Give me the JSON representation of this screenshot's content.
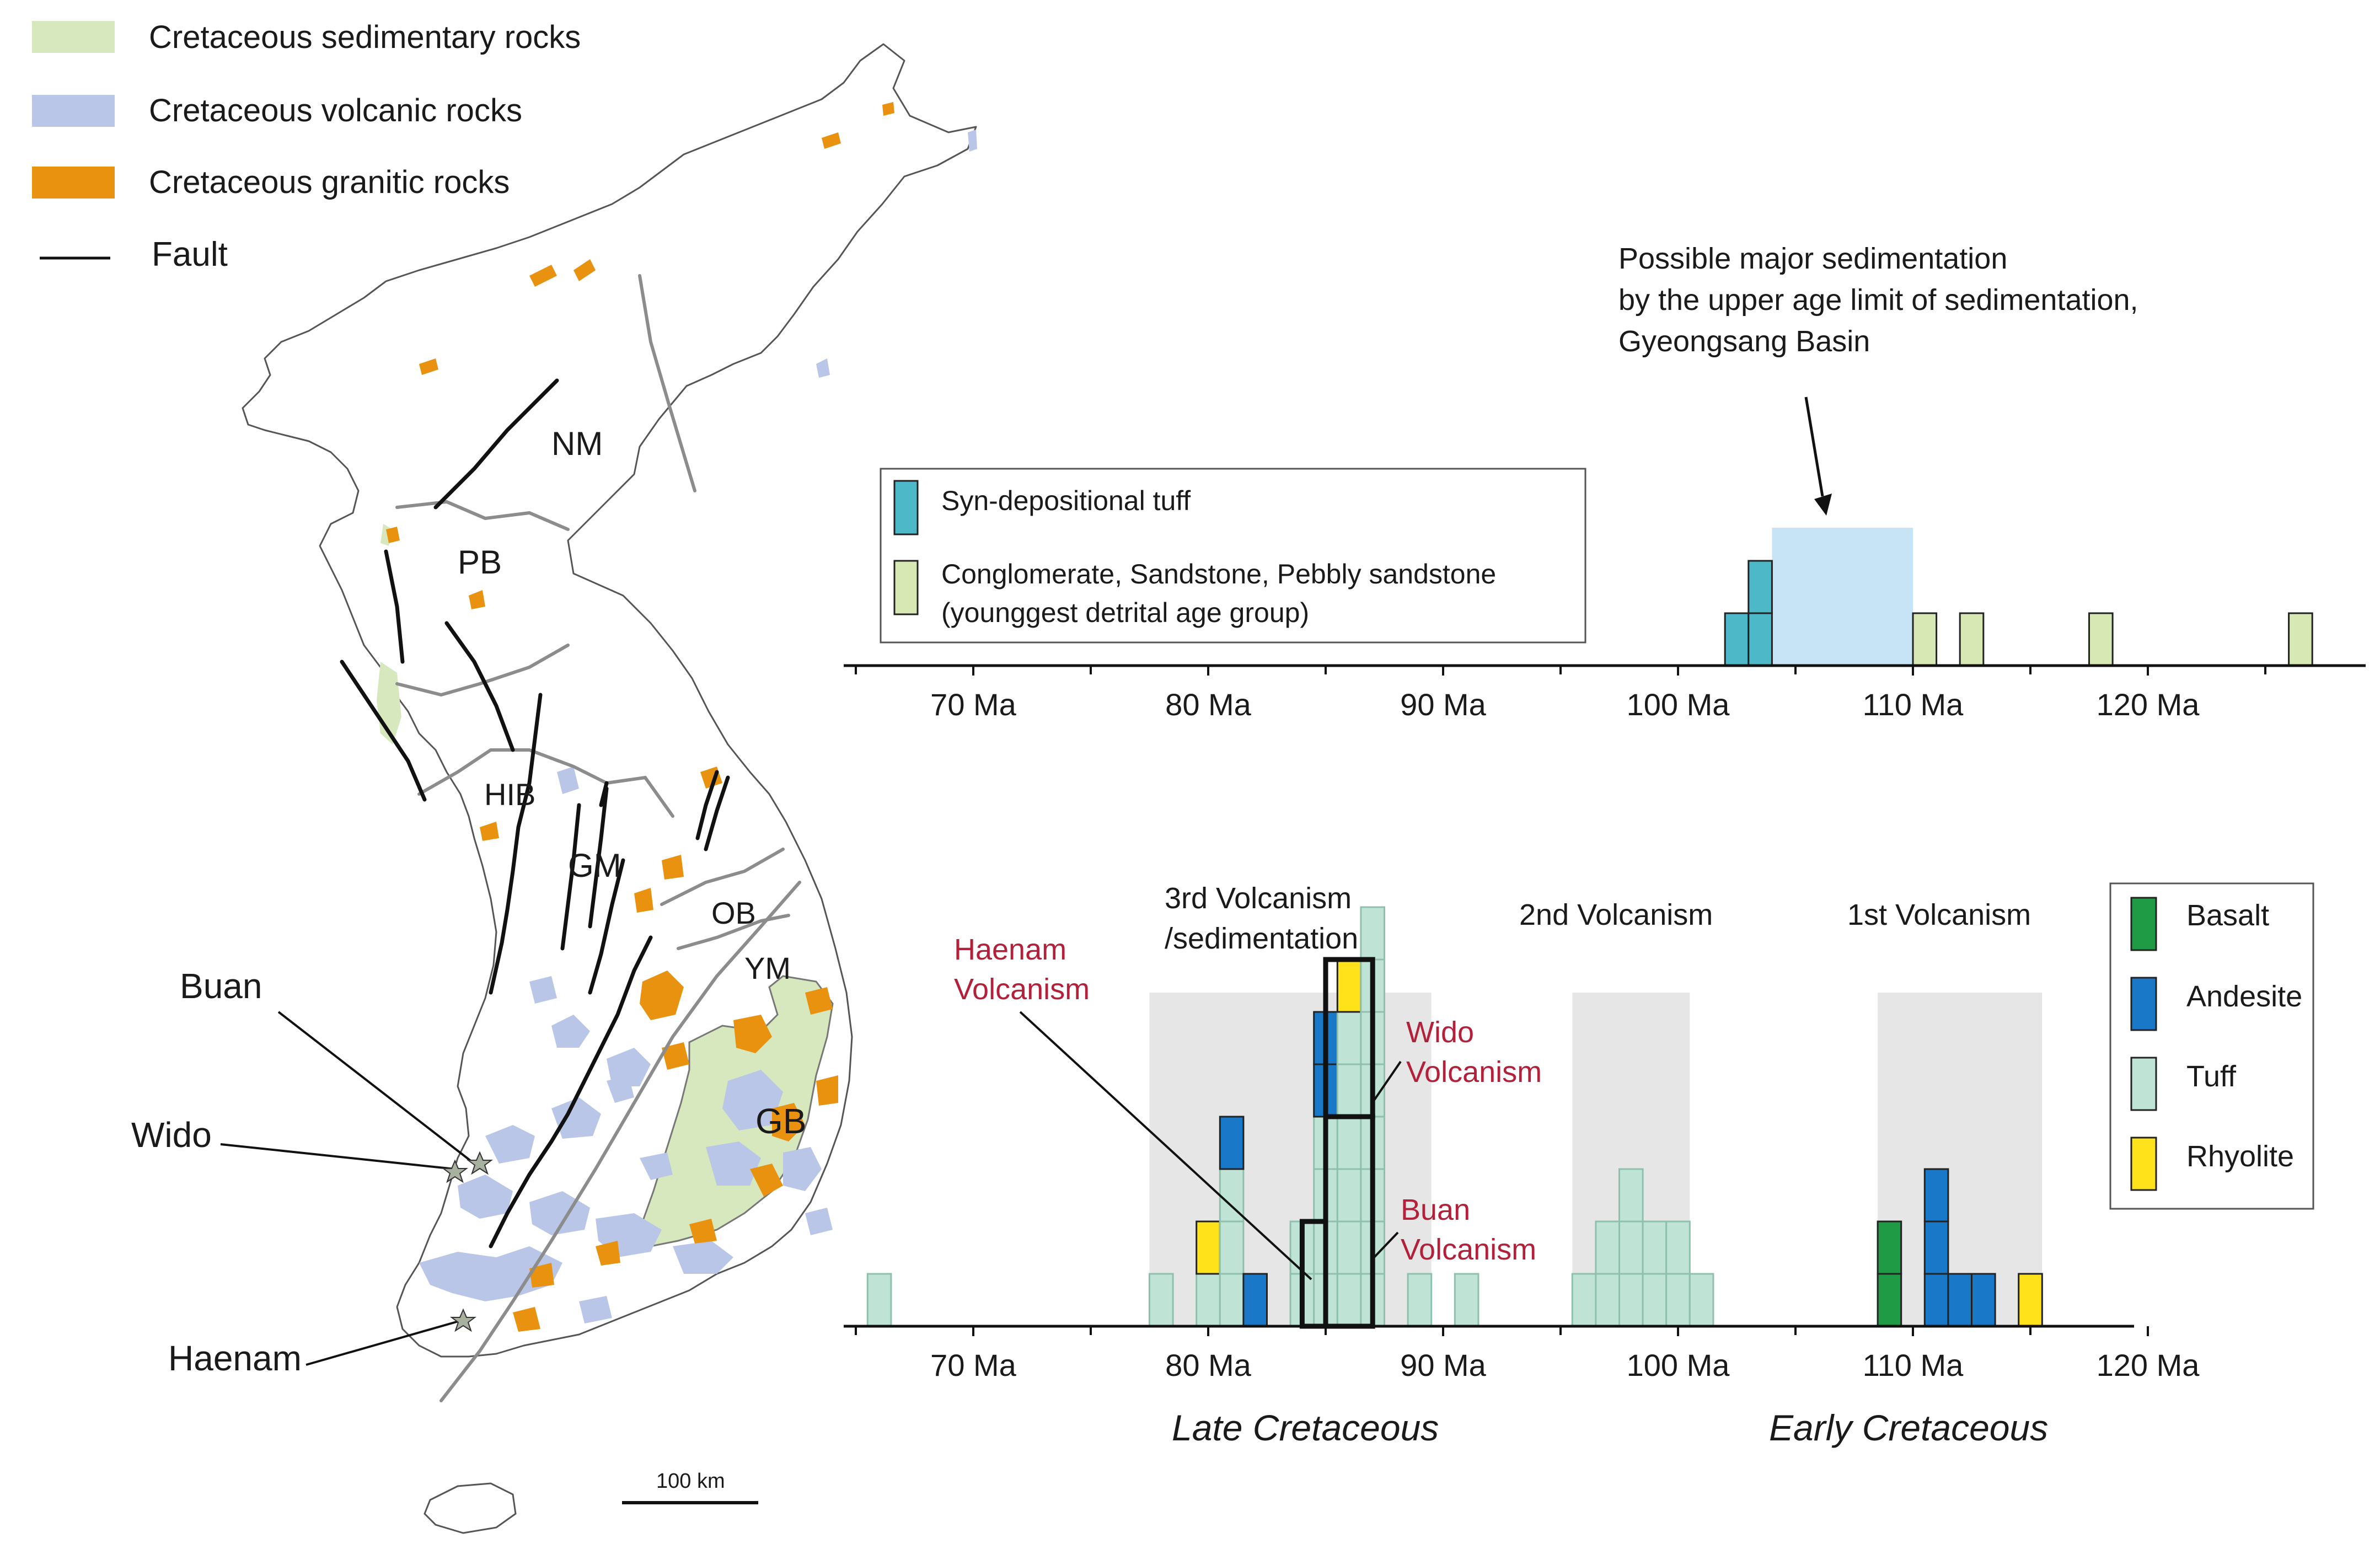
{
  "colors": {
    "sedimentary": "#d7e8bf",
    "volcanic": "#b9c6e8",
    "granitic": "#e8920f",
    "syn_tuff": "#4cb8c8",
    "detrital": "#d8e8b4",
    "basalt": "#1f9a45",
    "andesite": "#1a78c8",
    "tuff": "#bfe4d6",
    "rhyolite": "#ffe21a",
    "span_box": "#c6e4f6",
    "shade": "#e6e6e6",
    "volc_label": "#b3203a"
  },
  "legend_map": {
    "items": [
      {
        "label": "Cretaceous sedimentary rocks",
        "symbol": "sedimentary"
      },
      {
        "label": "Cretaceous volcanic rocks",
        "symbol": "volcanic"
      },
      {
        "label": "Cretaceous granitic rocks",
        "symbol": "granitic"
      },
      {
        "label": "Fault",
        "symbol": "fault"
      }
    ]
  },
  "map": {
    "regions": [
      "NM",
      "PB",
      "HIB",
      "GM",
      "OB",
      "YM",
      "GB"
    ],
    "localities": [
      "Buan",
      "Wido",
      "Haenam"
    ],
    "scale_label": "100 km"
  },
  "chart_data": [
    {
      "type": "bar",
      "subtype": "stacked-unit-histogram",
      "title": "",
      "annotation": {
        "lines": [
          "Possible major sedimentation",
          "by the upper age limit of sedimentation,",
          "Gyeongsang Basin"
        ],
        "span_ma": [
          104,
          110
        ]
      },
      "legend": [
        {
          "label": "Syn-depositional tuff",
          "color": "syn_tuff"
        },
        {
          "label": "Conglomerate, Sandstone, Pebbly sandstone",
          "label2": "(younggest detrital age group)",
          "color": "detrital"
        }
      ],
      "xlim": [
        65,
        130
      ],
      "x_axis_reversed": false,
      "tick_values": [
        70,
        80,
        90,
        100,
        110,
        120
      ],
      "tick_labels": [
        "70 Ma",
        "80 Ma",
        "90 Ma",
        "100 Ma",
        "110 Ma",
        "120 Ma"
      ],
      "bin_width_ma": 1,
      "columns": [
        {
          "age_ma": 102.5,
          "stack": [
            "syn_tuff"
          ]
        },
        {
          "age_ma": 103.5,
          "stack": [
            "syn_tuff",
            "syn_tuff"
          ]
        },
        {
          "age_ma": 110.5,
          "stack": [
            "detrital"
          ]
        },
        {
          "age_ma": 112.5,
          "stack": [
            "detrital"
          ]
        },
        {
          "age_ma": 118,
          "stack": [
            "detrital"
          ]
        },
        {
          "age_ma": 126.5,
          "stack": [
            "detrital"
          ]
        }
      ]
    },
    {
      "type": "bar",
      "subtype": "stacked-unit-histogram",
      "title": "",
      "xlim": [
        65,
        120
      ],
      "tick_values": [
        70,
        80,
        90,
        100,
        110,
        120
      ],
      "tick_labels": [
        "70 Ma",
        "80 Ma",
        "90 Ma",
        "100 Ma",
        "110 Ma",
        "120 Ma"
      ],
      "bin_width_ma": 1,
      "legend": [
        {
          "label": "Basalt",
          "color": "basalt"
        },
        {
          "label": "Andesite",
          "color": "andesite"
        },
        {
          "label": "Tuff",
          "color": "tuff"
        },
        {
          "label": "Rhyolite",
          "color": "rhyolite"
        }
      ],
      "phases": [
        {
          "lines": [
            "3rd Volcanism",
            "/sedimentation"
          ],
          "span_ma": [
            77.5,
            89.5
          ]
        },
        {
          "lines": [
            "2nd Volcanism"
          ],
          "span_ma": [
            95.5,
            100.5
          ]
        },
        {
          "lines": [
            "1st Volcanism"
          ],
          "span_ma": [
            108.5,
            115.5
          ]
        }
      ],
      "volcanism_labels": [
        {
          "lines": [
            "Haenam",
            "Volcanism"
          ]
        },
        {
          "lines": [
            "Wido",
            "Volcanism"
          ]
        },
        {
          "lines": [
            "Buan",
            "Volcanism"
          ]
        }
      ],
      "highlight_columns": {
        "Haenam": [
          [
            84.5,
            0,
            2
          ]
        ],
        "Buan": [
          [
            85.5,
            0,
            4
          ],
          [
            86.5,
            0,
            4
          ]
        ],
        "Wido": [
          [
            85.5,
            4,
            7
          ],
          [
            86.5,
            4,
            7
          ]
        ]
      },
      "eras": [
        "Late Cretaceous",
        "Early Cretaceous"
      ],
      "columns": [
        {
          "age_ma": 66,
          "stack": [
            "tuff"
          ]
        },
        {
          "age_ma": 78,
          "stack": [
            "tuff"
          ]
        },
        {
          "age_ma": 80,
          "stack": [
            "tuff",
            "rhyolite"
          ]
        },
        {
          "age_ma": 81,
          "stack": [
            "tuff",
            "tuff",
            "tuff",
            "andesite"
          ]
        },
        {
          "age_ma": 82,
          "stack": [
            "andesite"
          ]
        },
        {
          "age_ma": 84,
          "stack": [
            "tuff",
            "tuff"
          ]
        },
        {
          "age_ma": 85,
          "stack": [
            "tuff",
            "tuff",
            "tuff",
            "tuff",
            "andesite",
            "andesite"
          ]
        },
        {
          "age_ma": 86,
          "stack": [
            "tuff",
            "tuff",
            "tuff",
            "tuff",
            "tuff",
            "tuff",
            "rhyolite"
          ]
        },
        {
          "age_ma": 87,
          "stack": [
            "tuff",
            "tuff",
            "tuff",
            "tuff",
            "tuff",
            "tuff",
            "tuff",
            "tuff"
          ]
        },
        {
          "age_ma": 89,
          "stack": [
            "tuff"
          ]
        },
        {
          "age_ma": 91,
          "stack": [
            "tuff"
          ]
        },
        {
          "age_ma": 96,
          "stack": [
            "tuff"
          ]
        },
        {
          "age_ma": 97,
          "stack": [
            "tuff",
            "tuff"
          ]
        },
        {
          "age_ma": 98,
          "stack": [
            "tuff",
            "tuff",
            "tuff"
          ]
        },
        {
          "age_ma": 99,
          "stack": [
            "tuff",
            "tuff"
          ]
        },
        {
          "age_ma": 100,
          "stack": [
            "tuff",
            "tuff"
          ]
        },
        {
          "age_ma": 101,
          "stack": [
            "tuff"
          ]
        },
        {
          "age_ma": 109,
          "stack": [
            "basalt",
            "basalt"
          ]
        },
        {
          "age_ma": 111,
          "stack": [
            "andesite",
            "andesite",
            "andesite"
          ]
        },
        {
          "age_ma": 112,
          "stack": [
            "andesite"
          ]
        },
        {
          "age_ma": 113,
          "stack": [
            "andesite"
          ]
        },
        {
          "age_ma": 115,
          "stack": [
            "rhyolite"
          ]
        }
      ]
    }
  ]
}
